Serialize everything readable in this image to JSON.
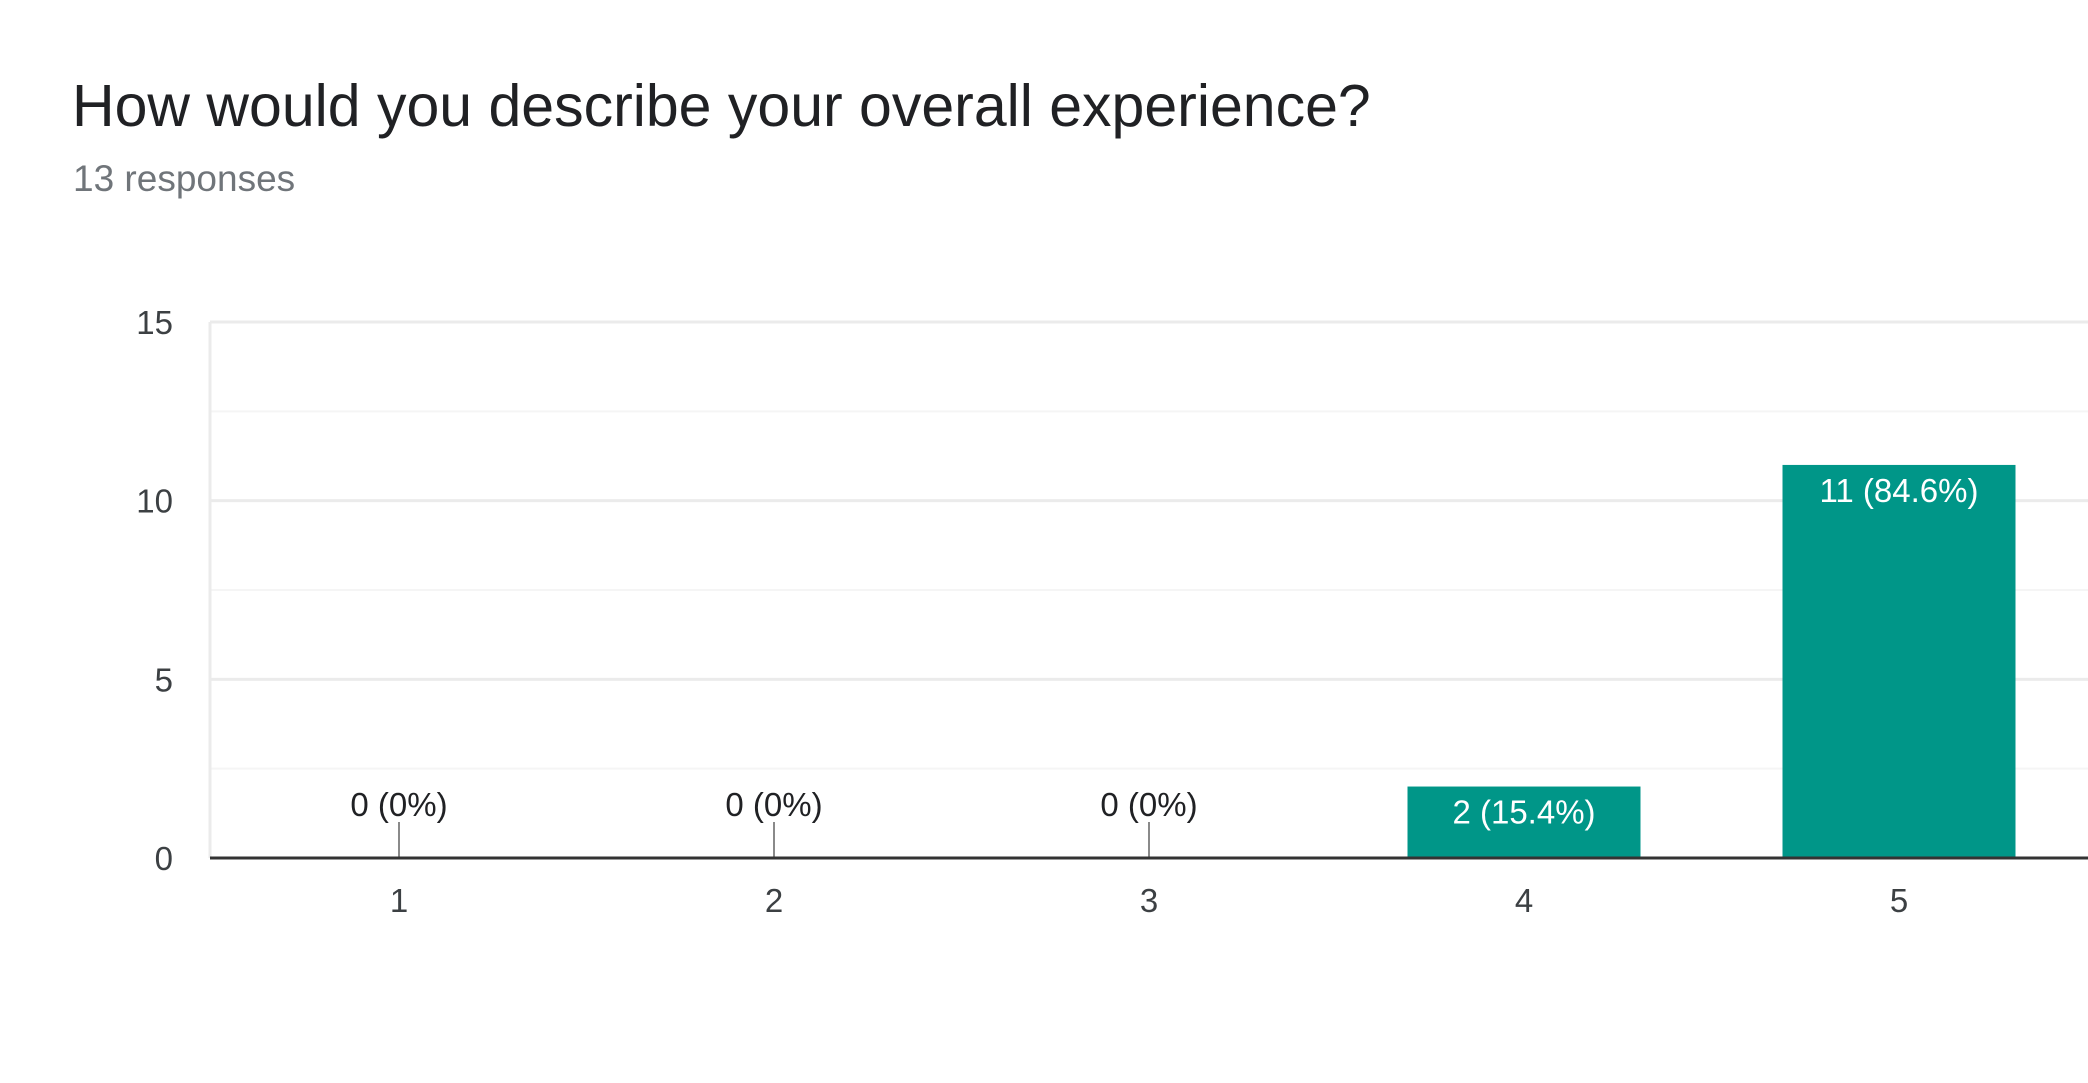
{
  "question": {
    "title": "How would you describe your overall experience?",
    "responses": "13 responses"
  },
  "colors": {
    "bar": "#009688",
    "bar_label": "#ffffff",
    "text": "#202124",
    "tick": "#3c4043",
    "gridline": "#ebebeb",
    "minor_gridline": "#f5f5f5",
    "axis": "#333333"
  },
  "chart_data": {
    "type": "bar",
    "categories": [
      "1",
      "2",
      "3",
      "4",
      "5"
    ],
    "values": [
      0,
      0,
      0,
      2,
      11
    ],
    "data_labels": [
      "0 (0%)",
      "0 (0%)",
      "0 (0%)",
      "2 (15.4%)",
      "11 (84.6%)"
    ],
    "ylim": [
      0,
      15
    ],
    "yticks": [
      0,
      5,
      10,
      15
    ],
    "grid": true,
    "legend": "none"
  }
}
